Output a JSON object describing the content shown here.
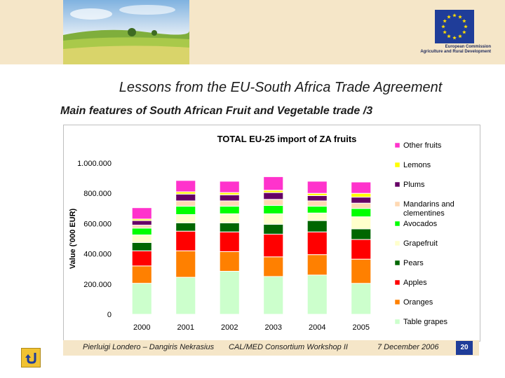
{
  "header": {
    "eu_caption_line1": "European Commission",
    "eu_caption_line2": "Agriculture and Rural Development"
  },
  "slide": {
    "title": "Lessons from the EU-South Africa Trade Agreement",
    "subtitle": "Main features of South African Fruit and Vegetable trade /3"
  },
  "footer": {
    "authors": "Pierluigi Londero – Dangiris Nekrasius",
    "event": "CAL/MED Consortium Workshop II",
    "date": "7 December 2006",
    "page": "20"
  },
  "icons": {
    "back": "u-turn-arrow-icon"
  },
  "chart_data": {
    "type": "bar",
    "stacked": true,
    "title": "TOTAL EU-25 import of ZA fruits",
    "ylabel": "Value ('000 EUR)",
    "xlabel": "",
    "ylim": [
      0,
      1000000
    ],
    "yticks": [
      0,
      200000,
      400000,
      600000,
      800000,
      1000000
    ],
    "ytick_labels": [
      "0",
      "200.000",
      "400.000",
      "600.000",
      "800.000",
      "1.000.000"
    ],
    "grid": false,
    "legend_position": "right",
    "categories": [
      "2000",
      "2001",
      "2002",
      "2003",
      "2004",
      "2005"
    ],
    "series": [
      {
        "name": "Table grapes",
        "color": "#ccffcc",
        "values": [
          205000,
          245000,
          285000,
          250000,
          260000,
          205000
        ]
      },
      {
        "name": "Oranges",
        "color": "#ff8000",
        "values": [
          115000,
          175000,
          130000,
          130000,
          135000,
          160000
        ]
      },
      {
        "name": "Apples",
        "color": "#ff0000",
        "values": [
          100000,
          130000,
          130000,
          150000,
          150000,
          130000
        ]
      },
      {
        "name": "Pears",
        "color": "#006600",
        "values": [
          55000,
          55000,
          60000,
          65000,
          75000,
          70000
        ]
      },
      {
        "name": "Grapefruit",
        "color": "#ffffcc",
        "values": [
          50000,
          55000,
          60000,
          70000,
          50000,
          80000
        ]
      },
      {
        "name": "Avocados",
        "color": "#00ff00",
        "values": [
          45000,
          55000,
          50000,
          55000,
          45000,
          55000
        ]
      },
      {
        "name": "Mandarins and clementines",
        "color": "#ffd9b3",
        "values": [
          20000,
          35000,
          35000,
          40000,
          35000,
          35000
        ]
      },
      {
        "name": "Plums",
        "color": "#660066",
        "values": [
          30000,
          45000,
          40000,
          45000,
          35000,
          40000
        ]
      },
      {
        "name": "Lemons",
        "color": "#ffff00",
        "values": [
          10000,
          15000,
          15000,
          15000,
          15000,
          25000
        ]
      },
      {
        "name": "Other fruits",
        "color": "#ff33cc",
        "values": [
          75000,
          75000,
          75000,
          90000,
          80000,
          75000
        ]
      }
    ]
  }
}
